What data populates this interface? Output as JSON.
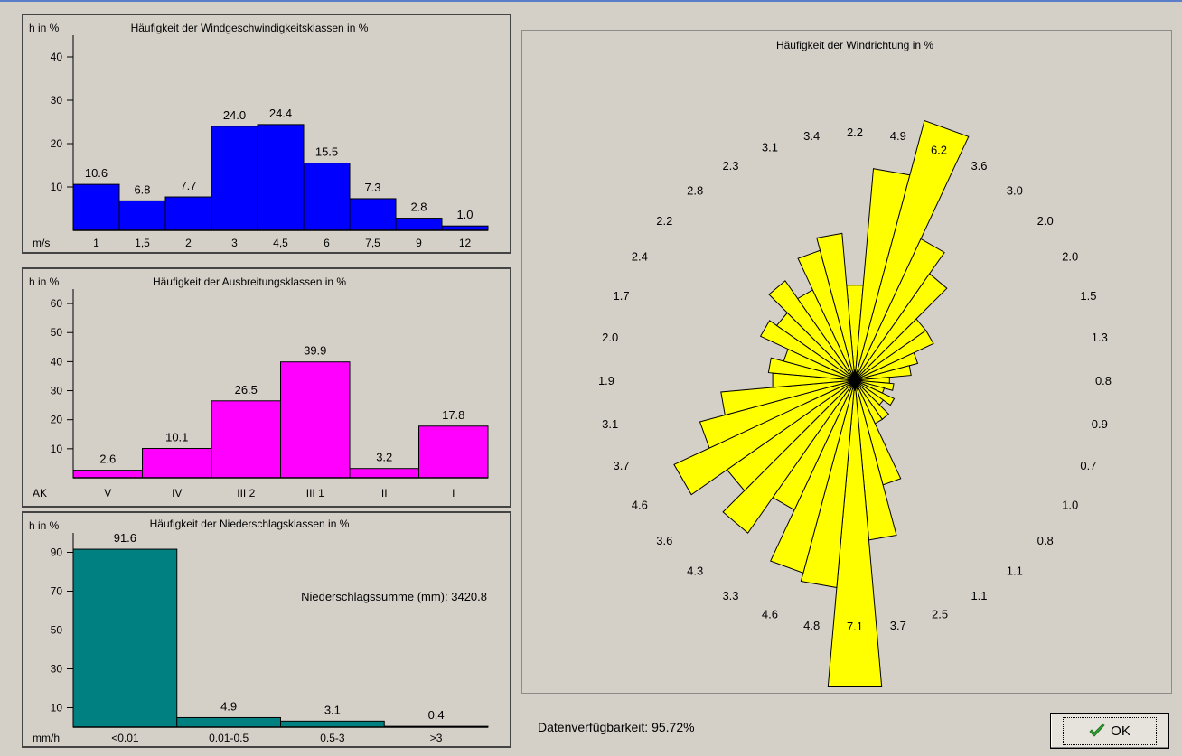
{
  "chart_data": [
    {
      "type": "bar",
      "title": "Häufigkeit der Windgeschwindigkeitsklassen in %",
      "ylabel": "h in %",
      "xunit": "m/s",
      "ylim": [
        0,
        45
      ],
      "yticks": [
        10,
        20,
        30,
        40
      ],
      "categories": [
        "1",
        "1,5",
        "2",
        "3",
        "4,5",
        "6",
        "7,5",
        "9",
        "12"
      ],
      "values": [
        10.6,
        6.8,
        7.7,
        24.0,
        24.4,
        15.5,
        7.3,
        2.8,
        1.0
      ],
      "value_labels": [
        "10.6",
        "6.8",
        "7.7",
        "24.0",
        "24.4",
        "15.5",
        "7.3",
        "2.8",
        "1.0"
      ],
      "color": "#0000ff"
    },
    {
      "type": "bar",
      "title": "Häufigkeit der Ausbreitungsklassen in %",
      "ylabel": "h in %",
      "xunit": "AK",
      "ylim": [
        0,
        65
      ],
      "yticks": [
        10,
        20,
        30,
        40,
        50,
        60
      ],
      "categories": [
        "V",
        "IV",
        "III 2",
        "III 1",
        "II",
        "I"
      ],
      "values": [
        2.6,
        10.1,
        26.5,
        39.9,
        3.2,
        17.8
      ],
      "value_labels": [
        "2.6",
        "10.1",
        "26.5",
        "39.9",
        "3.2",
        "17.8"
      ],
      "color": "#ff00ff"
    },
    {
      "type": "bar",
      "title": "Häufigkeit der Niederschlagsklassen in %",
      "ylabel": "h in %",
      "xunit": "mm/h",
      "ylim": [
        0,
        100
      ],
      "yticks": [
        10,
        30,
        50,
        70,
        90
      ],
      "categories": [
        "<0.01",
        "0.01-0.5",
        "0.5-3",
        ">3"
      ],
      "values": [
        91.6,
        4.9,
        3.1,
        0.4
      ],
      "value_labels": [
        "91.6",
        "4.9",
        "3.1",
        "0.4"
      ],
      "color": "#008080",
      "annotation": "Niederschlagssumme (mm): 3420.8"
    },
    {
      "type": "polar-bar",
      "title": "Häufigkeit der Windrichtung in %",
      "sectors": 36,
      "start_direction": "north",
      "rotation": "clockwise",
      "values": [
        2.2,
        4.9,
        6.2,
        3.6,
        3.0,
        2.0,
        2.0,
        1.5,
        1.3,
        0.8,
        0.9,
        0.7,
        1.0,
        0.8,
        1.1,
        1.1,
        2.5,
        3.7,
        7.1,
        4.8,
        4.6,
        3.3,
        4.3,
        3.6,
        4.6,
        3.7,
        3.1,
        1.9,
        2.0,
        1.7,
        2.4,
        2.2,
        2.8,
        2.3,
        3.1,
        3.4
      ],
      "value_labels": [
        "2.2",
        "4.9",
        "6.2",
        "3.6",
        "3.0",
        "2.0",
        "2.0",
        "1.5",
        "1.3",
        "0.8",
        "0.9",
        "0.7",
        "1.0",
        "0.8",
        "1.1",
        "1.1",
        "2.5",
        "3.7",
        "7.1",
        "4.8",
        "4.6",
        "3.3",
        "4.3",
        "3.6",
        "4.6",
        "3.7",
        "3.1",
        "1.9",
        "2.0",
        "1.7",
        "2.4",
        "2.2",
        "2.8",
        "2.3",
        "3.1",
        "3.4"
      ],
      "color": "#ffff00"
    }
  ],
  "footer": {
    "availability": "Datenverfügbarkeit: 95.72%",
    "ok_label": "OK"
  },
  "icons": {
    "ok": "checkmark-icon"
  },
  "colors": {
    "background": "#d4d0c8",
    "check": "#2e9e2e"
  }
}
